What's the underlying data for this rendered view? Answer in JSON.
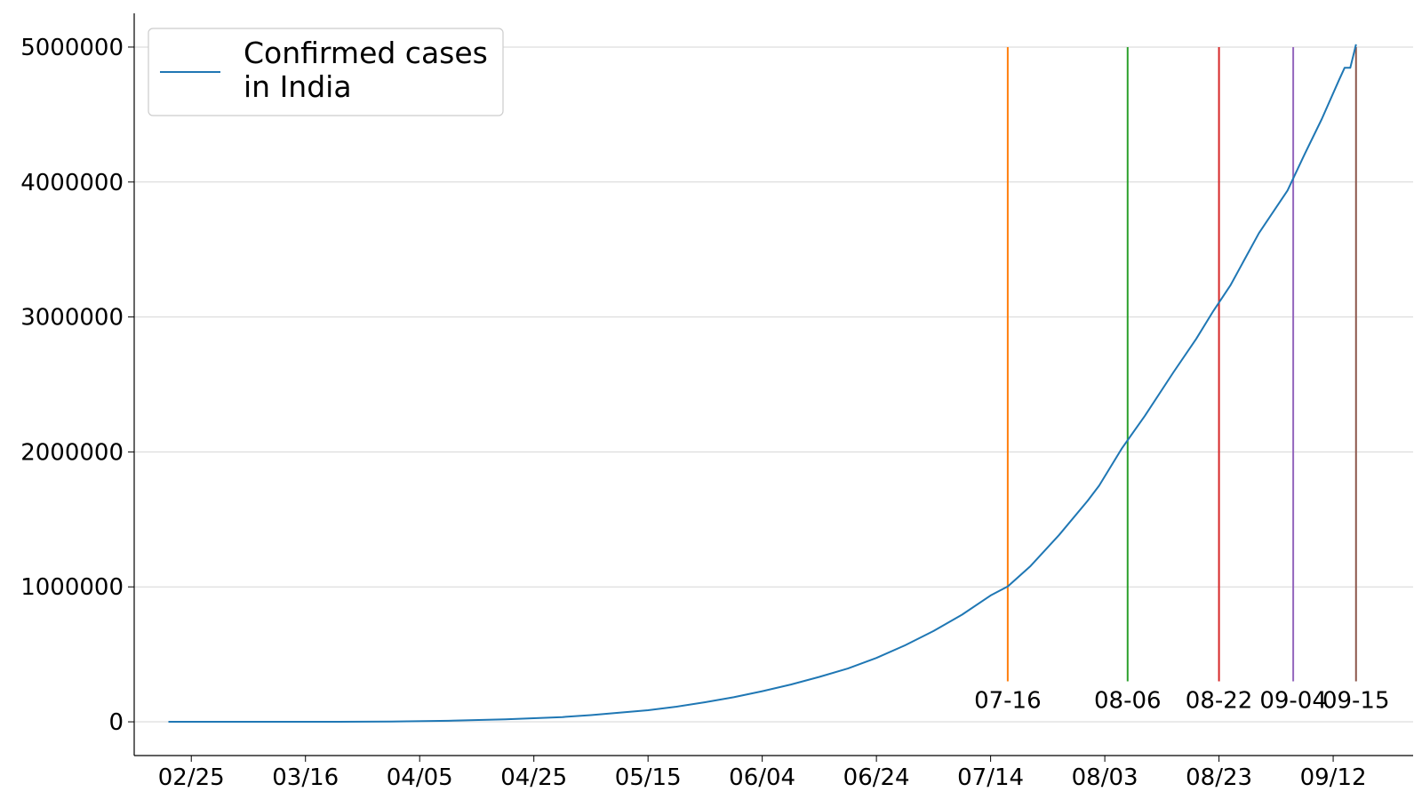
{
  "chart_data": {
    "type": "line",
    "title": "",
    "xlabel": "",
    "ylabel": "",
    "x_axis": {
      "type": "date",
      "range": [
        "2020-02-15",
        "2020-09-26"
      ],
      "ticks": [
        {
          "date": "2020-02-25",
          "label": "02/25"
        },
        {
          "date": "2020-03-16",
          "label": "03/16"
        },
        {
          "date": "2020-04-05",
          "label": "04/05"
        },
        {
          "date": "2020-04-25",
          "label": "04/25"
        },
        {
          "date": "2020-05-15",
          "label": "05/15"
        },
        {
          "date": "2020-06-04",
          "label": "06/04"
        },
        {
          "date": "2020-06-24",
          "label": "06/24"
        },
        {
          "date": "2020-07-14",
          "label": "07/14"
        },
        {
          "date": "2020-08-03",
          "label": "08/03"
        },
        {
          "date": "2020-08-23",
          "label": "08/23"
        },
        {
          "date": "2020-09-12",
          "label": "09/12"
        }
      ]
    },
    "y_axis": {
      "ylim": [
        -250000,
        5250000
      ],
      "ticks": [
        {
          "value": 0,
          "label": "0"
        },
        {
          "value": 1000000,
          "label": "1000000"
        },
        {
          "value": 2000000,
          "label": "2000000"
        },
        {
          "value": 3000000,
          "label": "3000000"
        },
        {
          "value": 4000000,
          "label": "4000000"
        },
        {
          "value": 5000000,
          "label": "5000000"
        }
      ],
      "grid": true
    },
    "legend": {
      "position": "top-left",
      "entries": [
        "Confirmed cases",
        "in India"
      ]
    },
    "series": [
      {
        "name": "Confirmed cases\nin India",
        "color": "#1f77b4",
        "points": [
          [
            "2020-02-21",
            3
          ],
          [
            "2020-03-01",
            3
          ],
          [
            "2020-03-10",
            50
          ],
          [
            "2020-03-20",
            250
          ],
          [
            "2020-03-31",
            1600
          ],
          [
            "2020-04-10",
            7600
          ],
          [
            "2020-04-20",
            18600
          ],
          [
            "2020-04-30",
            34900
          ],
          [
            "2020-05-05",
            49400
          ],
          [
            "2020-05-10",
            67200
          ],
          [
            "2020-05-15",
            85900
          ],
          [
            "2020-05-20",
            112000
          ],
          [
            "2020-05-25",
            144900
          ],
          [
            "2020-05-30",
            182000
          ],
          [
            "2020-06-04",
            226800
          ],
          [
            "2020-06-09",
            276600
          ],
          [
            "2020-06-14",
            333000
          ],
          [
            "2020-06-19",
            395000
          ],
          [
            "2020-06-24",
            473000
          ],
          [
            "2020-06-29",
            567000
          ],
          [
            "2020-07-04",
            673000
          ],
          [
            "2020-07-09",
            794000
          ],
          [
            "2020-07-14",
            936000
          ],
          [
            "2020-07-17",
            1003000
          ],
          [
            "2020-07-21",
            1155000
          ],
          [
            "2020-07-26",
            1385000
          ],
          [
            "2020-07-31",
            1638000
          ],
          [
            "2020-08-02",
            1750000
          ],
          [
            "2020-08-06",
            2027000
          ],
          [
            "2020-08-10",
            2267000
          ],
          [
            "2020-08-15",
            2589000
          ],
          [
            "2020-08-19",
            2837000
          ],
          [
            "2020-08-22",
            3044000
          ],
          [
            "2020-08-25",
            3234000
          ],
          [
            "2020-08-30",
            3621000
          ],
          [
            "2020-09-04",
            3937000
          ],
          [
            "2020-09-07",
            4205000
          ],
          [
            "2020-09-10",
            4466000
          ],
          [
            "2020-09-13",
            4754000
          ],
          [
            "2020-09-14",
            4846000
          ],
          [
            "2020-09-15",
            4846000
          ],
          [
            "2020-09-16",
            5020000
          ]
        ]
      }
    ],
    "markers": [
      {
        "date": "2020-07-17",
        "label": "07-16",
        "color": "#ff7f0e",
        "y_top": 5000000,
        "y_bottom": 300000
      },
      {
        "date": "2020-08-07",
        "label": "08-06",
        "color": "#2ca02c",
        "y_top": 5000000,
        "y_bottom": 300000
      },
      {
        "date": "2020-08-23",
        "label": "08-22",
        "color": "#d62728",
        "y_top": 5000000,
        "y_bottom": 300000
      },
      {
        "date": "2020-09-05",
        "label": "09-04",
        "color": "#9467bd",
        "y_top": 5000000,
        "y_bottom": 300000
      },
      {
        "date": "2020-09-16",
        "label": "09-15",
        "color": "#8c564b",
        "y_top": 5000000,
        "y_bottom": 300000
      }
    ]
  }
}
